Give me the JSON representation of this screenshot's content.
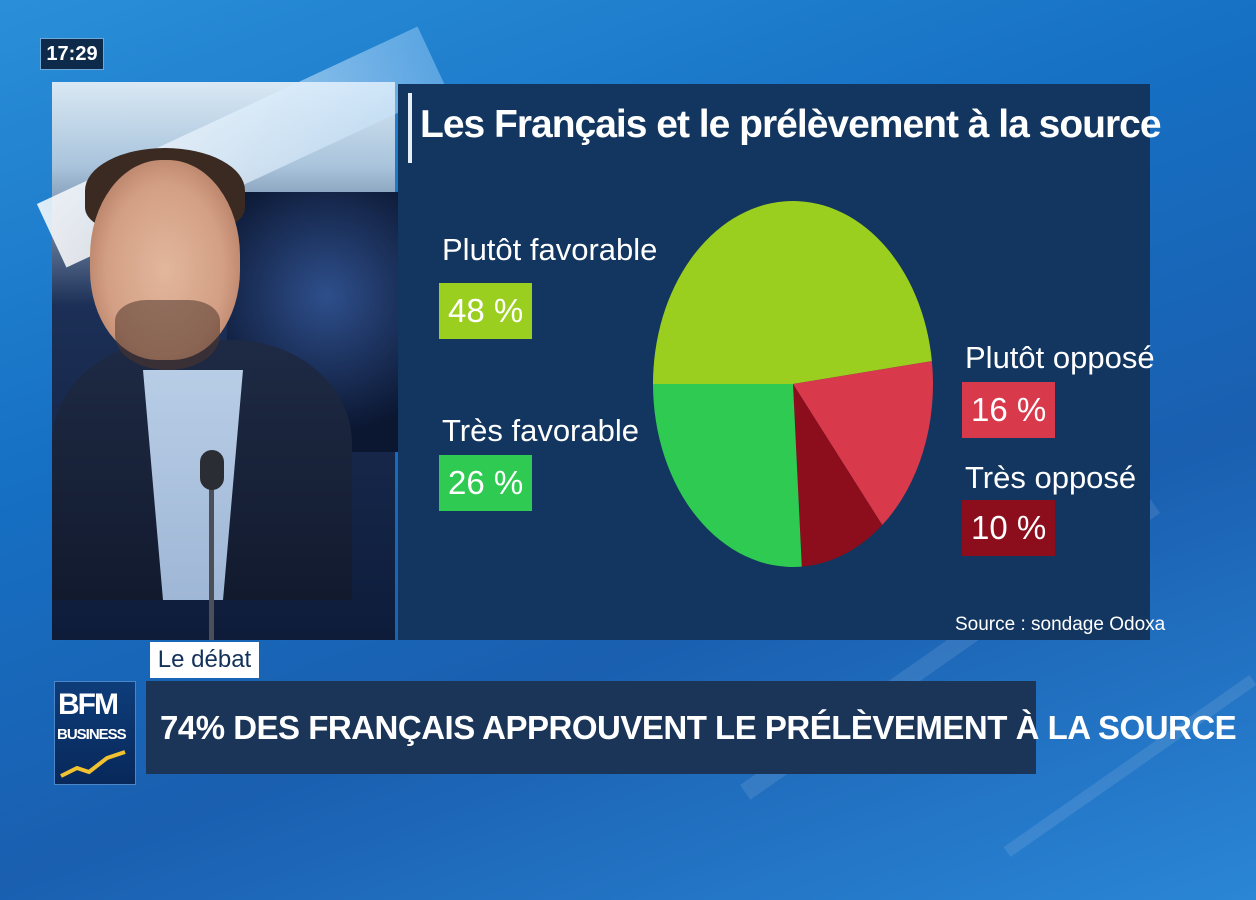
{
  "overlay": {
    "clock": "17:29",
    "segment_tag": "Le débat",
    "channel_logo_top": "BFM",
    "channel_logo_bottom": "BUSINESS",
    "headline": "74% DES FRANÇAIS APPROUVENT LE PRÉLÈVEMENT À LA SOURCE"
  },
  "chart_data": {
    "type": "pie",
    "title": "Les Français et le prélèvement à la source",
    "source": "Source : sondage Odoxa",
    "unit": "%",
    "slices": [
      {
        "label": "Plutôt favorable",
        "value": 48,
        "display": "48 %",
        "color": "#9bcf1f"
      },
      {
        "label": "Plutôt opposé",
        "value": 16,
        "display": "16 %",
        "color": "#d8394b"
      },
      {
        "label": "Très opposé",
        "value": 10,
        "display": "10 %",
        "color": "#8c0d1b"
      },
      {
        "label": "Très favorable",
        "value": 26,
        "display": "26 %",
        "color": "#2fca52"
      }
    ]
  }
}
